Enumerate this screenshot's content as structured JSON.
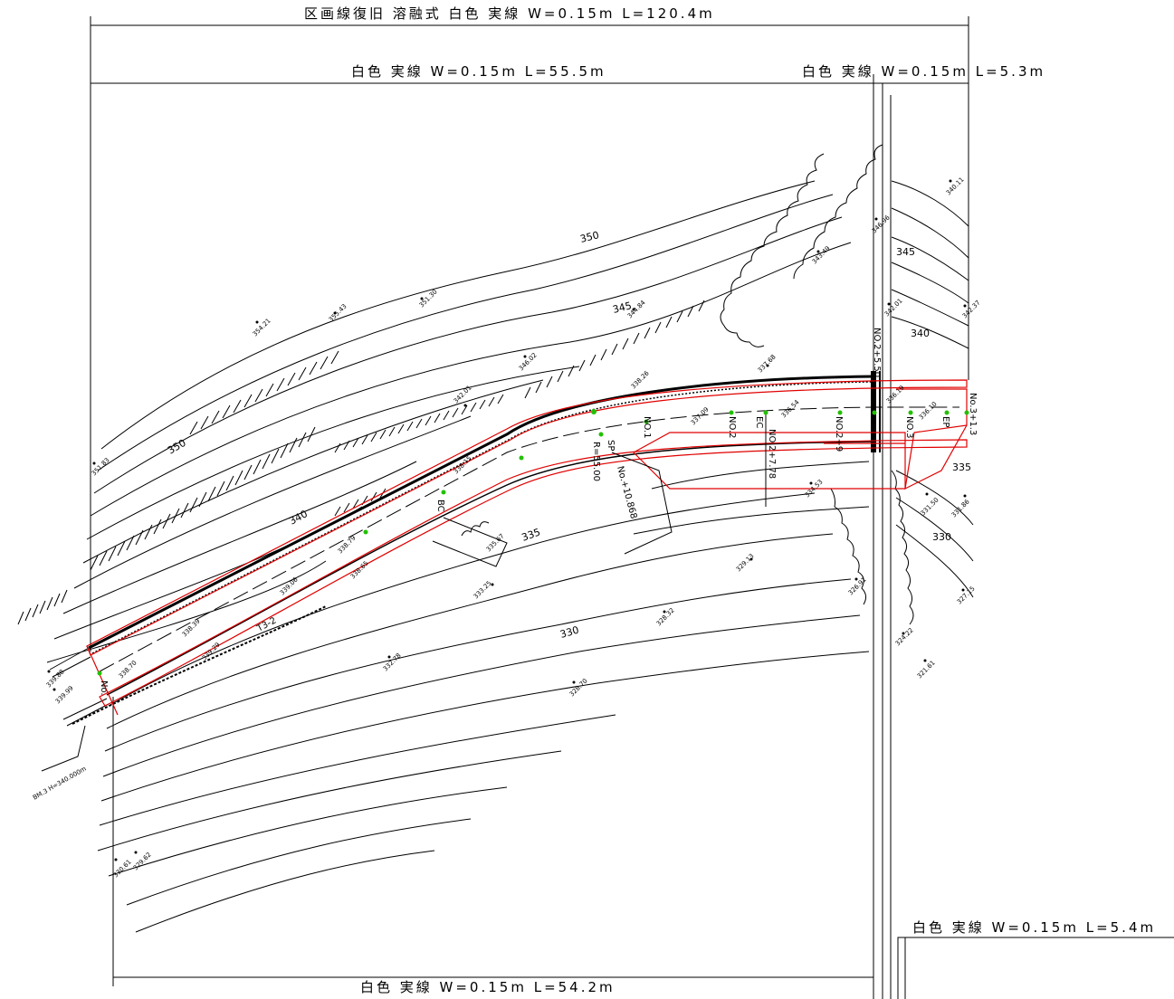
{
  "dimensions": {
    "top_total": "区画線復旧 溶融式 白色 実線 W=0.15m L=120.4m",
    "top_left": "白色 実線 W=0.15m L=55.5m",
    "top_right": "白色 実線 W=0.15m L=5.3m",
    "bottom_right": "白色 実線 W=0.15m L=5.4m",
    "bottom_left": "白色 実線 W=0.15m L=54.2m"
  },
  "contour_labels": [
    "350",
    "350",
    "345",
    "345",
    "340",
    "340",
    "335",
    "335",
    "330",
    "330"
  ],
  "spot_heights": [
    "351.30",
    "355.43",
    "354.21",
    "344.84",
    "346.02",
    "342.01",
    "338.26",
    "337.68",
    "340.11",
    "346.96",
    "343.49",
    "342.01",
    "342.37",
    "351.83",
    "338.15",
    "338.79",
    "339.06",
    "338.39",
    "339.29",
    "338.70",
    "339.99",
    "338.65",
    "335.67",
    "333.25",
    "332.78",
    "328.70",
    "329.13",
    "328.32",
    "334.53",
    "331.50",
    "331.86",
    "327.15",
    "326.91",
    "324.22",
    "321.61",
    "330.61",
    "329.62",
    "336.54",
    "337.09",
    "336.19",
    "336.10",
    "339.88"
  ],
  "stations": [
    "No.",
    "BC",
    "SP",
    "NO.1",
    "NO.2",
    "EC",
    "NO.2+7.78",
    "NO.2+9",
    "NO.3",
    "EP",
    "No.3+1.3",
    "No.+10.868",
    "T3-2",
    "NO.2+5.50",
    "R=55.00"
  ],
  "benchmark": "BM.3 H=340.000m"
}
